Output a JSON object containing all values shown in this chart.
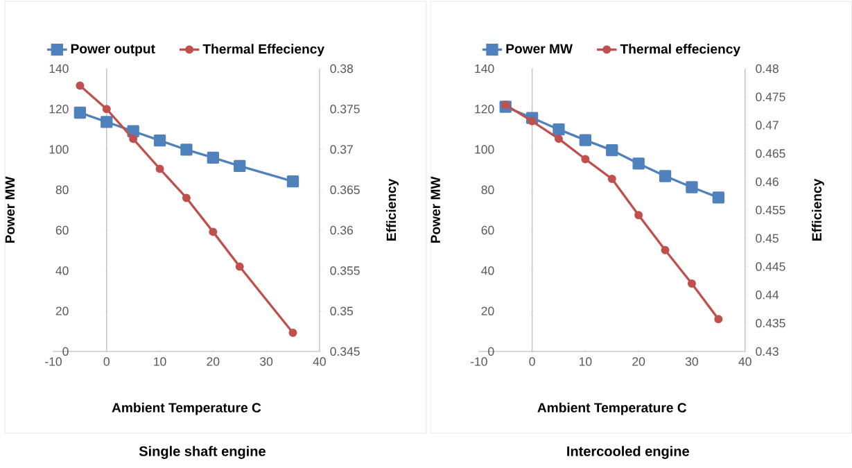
{
  "chart_data": [
    {
      "type": "line",
      "xlabel": "Ambient Temperature C",
      "ylabel": "Power MW",
      "y2label": "Efficiency",
      "legend": "top",
      "annotations": [
        "Single shaft engine"
      ],
      "x": [
        -5,
        0,
        5,
        10,
        15,
        20,
        25,
        35
      ],
      "series": [
        {
          "name": "Power output",
          "color": "#4f81bd",
          "marker": "square",
          "values": [
            118.2,
            113.6,
            109.0,
            104.4,
            99.9,
            95.9,
            91.8,
            84.2
          ]
        },
        {
          "name": "Thermal Effeciency",
          "color": "#c0504d",
          "marker": "circle",
          "axis": "y2",
          "values": [
            0.3779,
            0.375,
            0.3713,
            0.3676,
            0.364,
            0.3598,
            0.3555,
            0.3473
          ]
        }
      ],
      "xlim": [
        -10,
        40
      ],
      "xticks": [
        -10,
        0,
        10,
        20,
        30,
        40
      ],
      "ylim": [
        0,
        140
      ],
      "yticks": [
        0,
        20,
        40,
        60,
        80,
        100,
        120,
        140
      ],
      "y2lim": [
        0.345,
        0.38
      ],
      "y2ticks": [
        0.345,
        0.35,
        0.355,
        0.36,
        0.365,
        0.37,
        0.375,
        0.38
      ]
    },
    {
      "type": "line",
      "xlabel": "Ambient Temperature C",
      "ylabel": "Power MW",
      "y2label": "Efficiency",
      "legend": "top",
      "annotations": [
        "Intercooled engine"
      ],
      "x": [
        -5,
        0,
        5,
        10,
        15,
        20,
        25,
        30,
        35
      ],
      "series": [
        {
          "name": "Power MW",
          "color": "#4f81bd",
          "marker": "square",
          "values": [
            121.1,
            115.6,
            109.9,
            104.6,
            99.6,
            93.0,
            86.8,
            81.3,
            76.2
          ]
        },
        {
          "name": "Thermal effeciency",
          "color": "#c0504d",
          "marker": "circle",
          "axis": "y2",
          "values": [
            0.4736,
            0.4707,
            0.4676,
            0.464,
            0.4605,
            0.4541,
            0.4479,
            0.442,
            0.4357
          ]
        }
      ],
      "xlim": [
        -10,
        40
      ],
      "xticks": [
        -10,
        0,
        10,
        20,
        30,
        40
      ],
      "ylim": [
        0,
        140
      ],
      "yticks": [
        0,
        20,
        40,
        60,
        80,
        100,
        120,
        140
      ],
      "y2lim": [
        0.43,
        0.48
      ],
      "y2ticks": [
        0.43,
        0.435,
        0.44,
        0.445,
        0.45,
        0.455,
        0.46,
        0.465,
        0.47,
        0.475,
        0.48
      ]
    }
  ]
}
